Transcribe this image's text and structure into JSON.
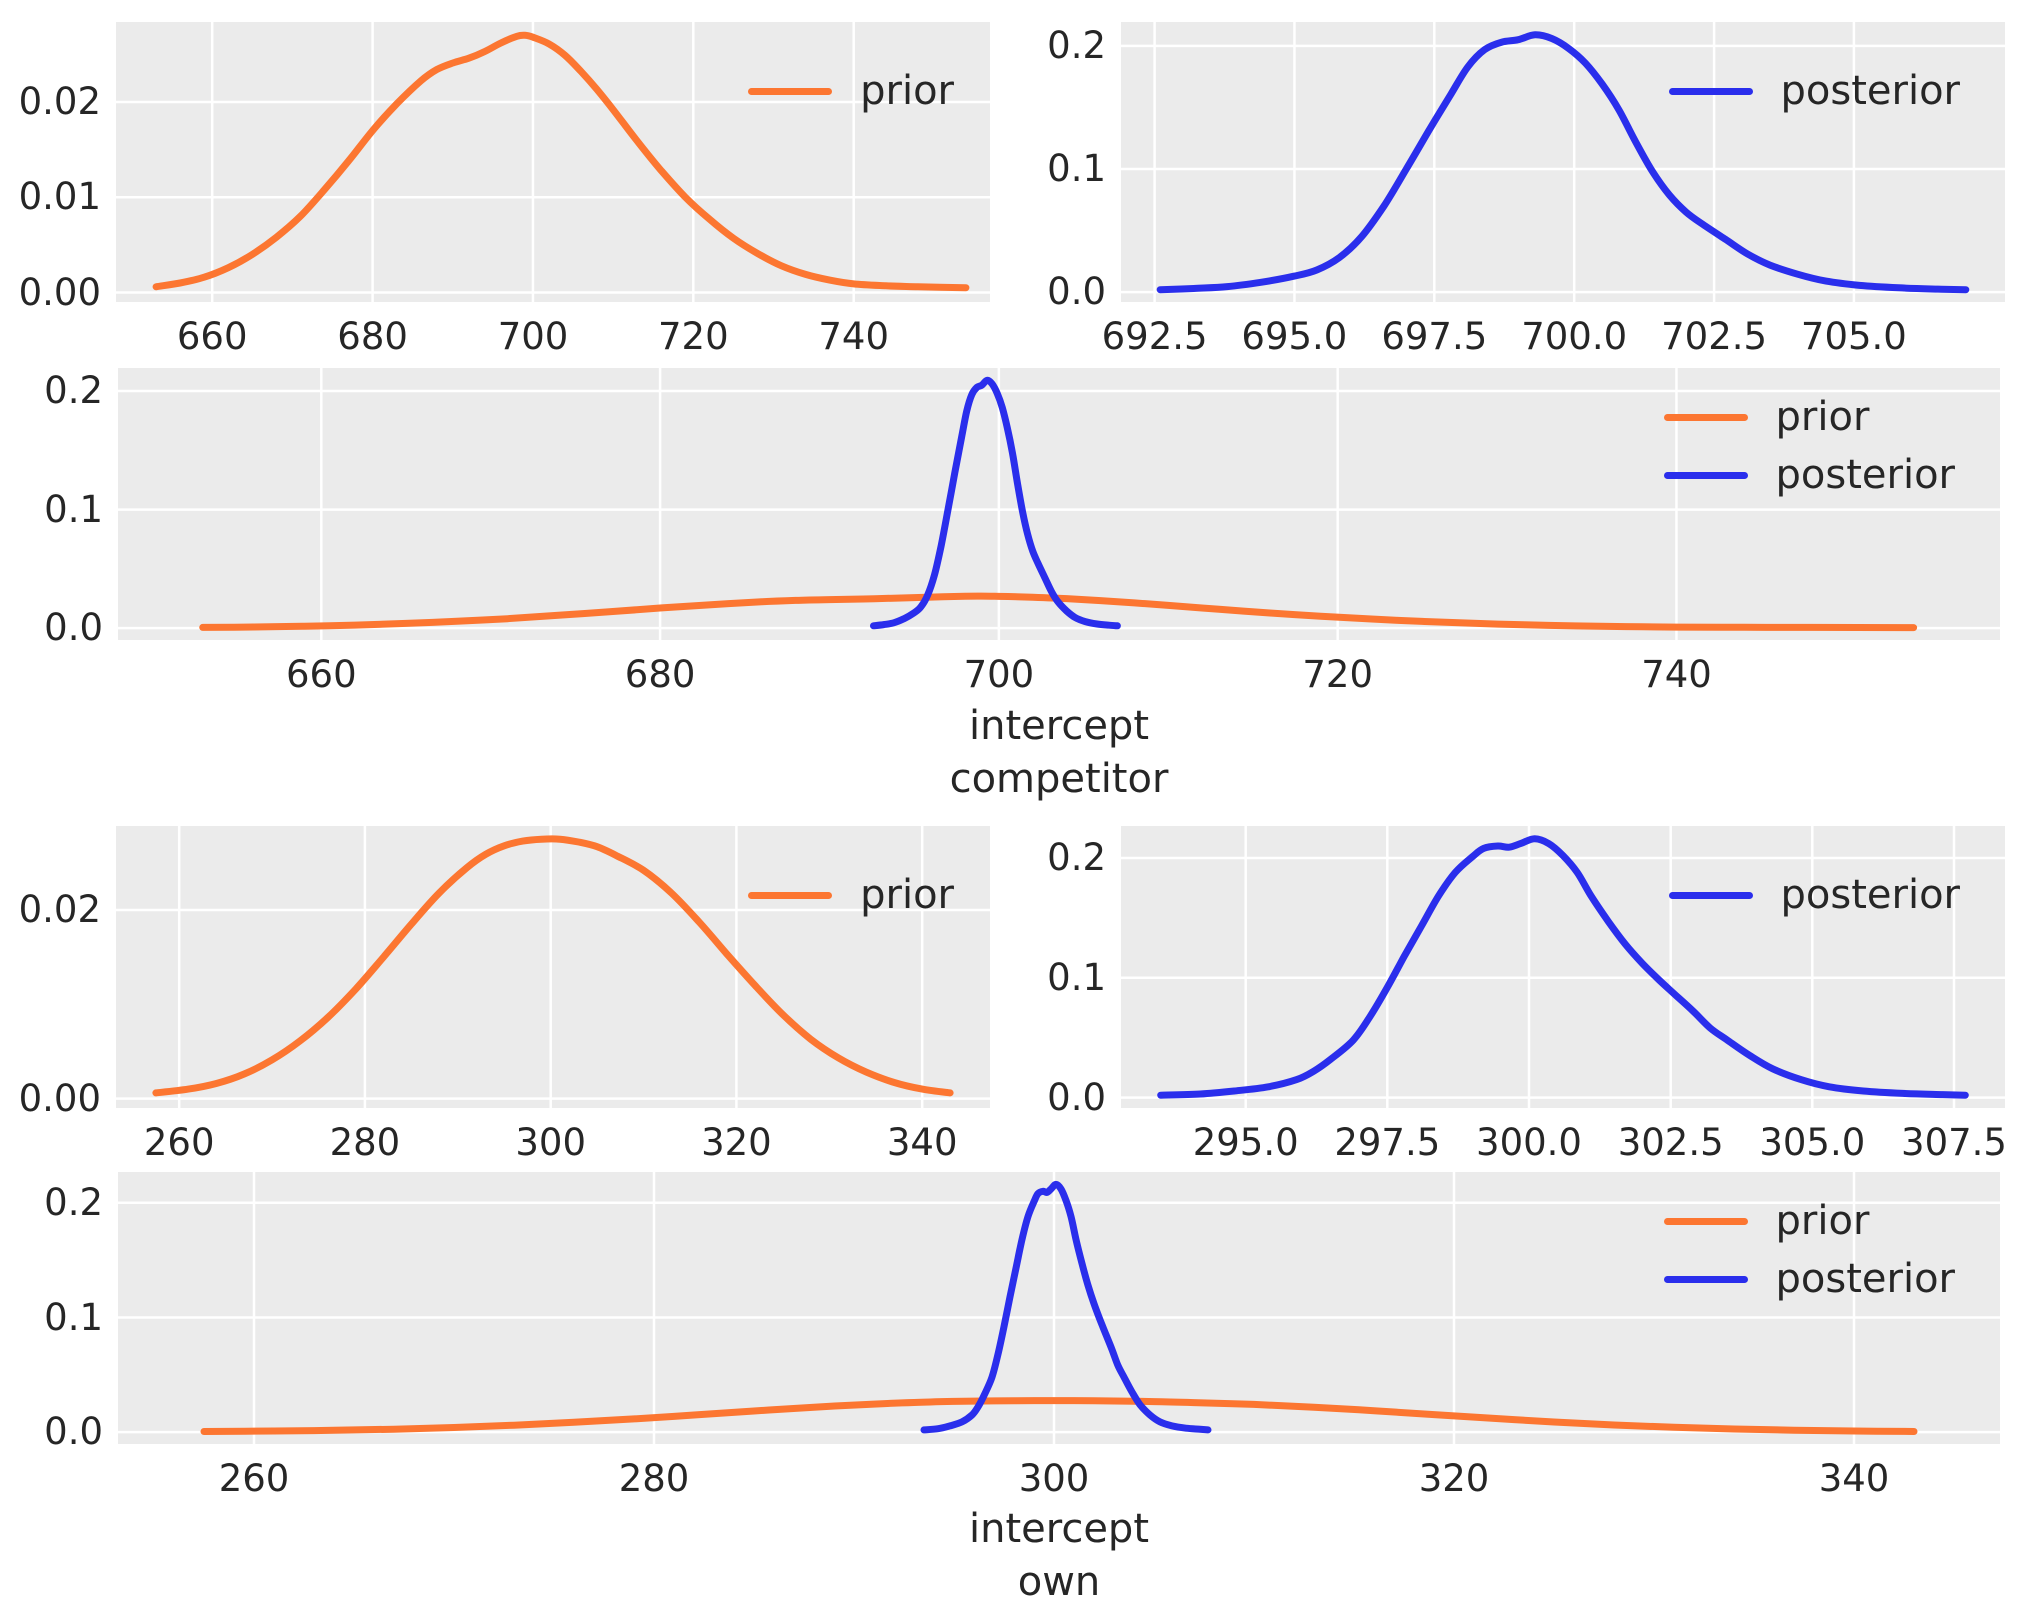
{
  "figure": {
    "kind": "kde-density-figure",
    "description": "Prior and posterior kernel density estimates for the intercept parameters of competitor and own"
  },
  "style": {
    "prior_color": "#fc7631",
    "posterior_color": "#2a2eec",
    "axes_background": "#ebebeb",
    "grid_color": "#ffffff",
    "text_color": "#262626",
    "figure_background": "#ffffff"
  },
  "chart_data": {
    "type": "line",
    "subtype": "kde-density",
    "title": "",
    "legend_position": "upper right",
    "grid": true,
    "curves": {
      "prior_competitor": [
        [
          653,
          0.0006
        ],
        [
          656,
          0.001
        ],
        [
          659,
          0.0016
        ],
        [
          662,
          0.0026
        ],
        [
          665,
          0.004
        ],
        [
          668,
          0.0058
        ],
        [
          671,
          0.008
        ],
        [
          674,
          0.0108
        ],
        [
          677,
          0.0138
        ],
        [
          680,
          0.017
        ],
        [
          683,
          0.0198
        ],
        [
          686,
          0.0222
        ],
        [
          688,
          0.0234
        ],
        [
          690,
          0.0241
        ],
        [
          692,
          0.0246
        ],
        [
          694,
          0.0253
        ],
        [
          696,
          0.0262
        ],
        [
          698,
          0.0269
        ],
        [
          699,
          0.027
        ],
        [
          700,
          0.0268
        ],
        [
          702,
          0.0261
        ],
        [
          704,
          0.0249
        ],
        [
          706,
          0.0232
        ],
        [
          708,
          0.0213
        ],
        [
          710,
          0.0192
        ],
        [
          713,
          0.0159
        ],
        [
          716,
          0.0128
        ],
        [
          719,
          0.01
        ],
        [
          722,
          0.0077
        ],
        [
          725,
          0.0057
        ],
        [
          728,
          0.0041
        ],
        [
          731,
          0.0028
        ],
        [
          734,
          0.0019
        ],
        [
          737,
          0.0013
        ],
        [
          740,
          0.0009
        ],
        [
          744,
          0.0007
        ],
        [
          748,
          0.0006
        ],
        [
          754,
          0.0005
        ]
      ],
      "posterior_competitor": [
        [
          692.6,
          0.002
        ],
        [
          693.2,
          0.003
        ],
        [
          693.8,
          0.0045
        ],
        [
          694.4,
          0.008
        ],
        [
          695,
          0.013
        ],
        [
          695.4,
          0.018
        ],
        [
          695.8,
          0.028
        ],
        [
          696.2,
          0.045
        ],
        [
          696.6,
          0.07
        ],
        [
          697,
          0.1
        ],
        [
          697.4,
          0.131
        ],
        [
          697.8,
          0.161
        ],
        [
          698.1,
          0.183
        ],
        [
          698.4,
          0.197
        ],
        [
          698.7,
          0.203
        ],
        [
          699,
          0.205
        ],
        [
          699.3,
          0.209
        ],
        [
          699.6,
          0.206
        ],
        [
          699.9,
          0.198
        ],
        [
          700.2,
          0.186
        ],
        [
          700.5,
          0.169
        ],
        [
          700.8,
          0.148
        ],
        [
          701.1,
          0.122
        ],
        [
          701.4,
          0.098
        ],
        [
          701.7,
          0.079
        ],
        [
          702,
          0.065
        ],
        [
          702.3,
          0.055
        ],
        [
          702.7,
          0.043
        ],
        [
          703.1,
          0.031
        ],
        [
          703.5,
          0.022
        ],
        [
          704,
          0.0145
        ],
        [
          704.5,
          0.009
        ],
        [
          705.1,
          0.0055
        ],
        [
          705.8,
          0.0035
        ],
        [
          706.5,
          0.0025
        ],
        [
          707,
          0.002
        ]
      ],
      "prior_own": [
        [
          257.5,
          0.0006
        ],
        [
          261,
          0.001
        ],
        [
          264,
          0.0016
        ],
        [
          267,
          0.0026
        ],
        [
          270,
          0.0041
        ],
        [
          273,
          0.0061
        ],
        [
          276,
          0.0086
        ],
        [
          279,
          0.0116
        ],
        [
          282,
          0.015
        ],
        [
          285,
          0.0185
        ],
        [
          288,
          0.0218
        ],
        [
          291,
          0.0245
        ],
        [
          293,
          0.0259
        ],
        [
          295,
          0.0268
        ],
        [
          297,
          0.0273
        ],
        [
          299,
          0.0275
        ],
        [
          301,
          0.0275
        ],
        [
          303,
          0.0272
        ],
        [
          305,
          0.0267
        ],
        [
          307,
          0.0258
        ],
        [
          310,
          0.0242
        ],
        [
          313,
          0.0218
        ],
        [
          316,
          0.0187
        ],
        [
          319,
          0.0153
        ],
        [
          322,
          0.012
        ],
        [
          325,
          0.0089
        ],
        [
          328,
          0.0063
        ],
        [
          331,
          0.0043
        ],
        [
          334,
          0.0028
        ],
        [
          337,
          0.0017
        ],
        [
          340,
          0.001
        ],
        [
          343,
          0.0006
        ]
      ],
      "posterior_own": [
        [
          293.5,
          0.002
        ],
        [
          294.2,
          0.003
        ],
        [
          294.8,
          0.0055
        ],
        [
          295.4,
          0.009
        ],
        [
          295.9,
          0.015
        ],
        [
          296.2,
          0.022
        ],
        [
          296.5,
          0.032
        ],
        [
          296.9,
          0.048
        ],
        [
          297.2,
          0.068
        ],
        [
          297.5,
          0.092
        ],
        [
          297.8,
          0.118
        ],
        [
          298.1,
          0.143
        ],
        [
          298.4,
          0.168
        ],
        [
          298.7,
          0.188
        ],
        [
          299,
          0.201
        ],
        [
          299.2,
          0.208
        ],
        [
          299.45,
          0.21
        ],
        [
          299.65,
          0.209
        ],
        [
          299.85,
          0.212
        ],
        [
          300.1,
          0.216
        ],
        [
          300.35,
          0.212
        ],
        [
          300.6,
          0.202
        ],
        [
          300.85,
          0.188
        ],
        [
          301.1,
          0.168
        ],
        [
          301.4,
          0.147
        ],
        [
          301.7,
          0.128
        ],
        [
          302,
          0.112
        ],
        [
          302.3,
          0.098
        ],
        [
          302.6,
          0.085
        ],
        [
          302.9,
          0.072
        ],
        [
          303.2,
          0.058
        ],
        [
          303.5,
          0.048
        ],
        [
          303.9,
          0.035
        ],
        [
          304.3,
          0.024
        ],
        [
          304.8,
          0.015
        ],
        [
          305.3,
          0.009
        ],
        [
          305.9,
          0.0055
        ],
        [
          306.6,
          0.0035
        ],
        [
          307.3,
          0.0025
        ],
        [
          307.7,
          0.002
        ]
      ]
    },
    "plots": [
      {
        "name": "prior-competitor",
        "xlim": [
          648,
          757
        ],
        "ylim": [
          -0.001,
          0.0284
        ],
        "xtick_labels": [
          "660",
          "680",
          "700",
          "720",
          "740"
        ],
        "xtick_values": [
          660,
          680,
          700,
          720,
          740
        ],
        "ytick_labels": [
          "0.00",
          "0.01",
          "0.02"
        ],
        "ytick_values": [
          0,
          0.01,
          0.02
        ],
        "series": [
          {
            "label": "prior",
            "curve": "prior_competitor",
            "color_key": "prior_color"
          }
        ],
        "legend": [
          {
            "label": "prior",
            "color_key": "prior_color"
          }
        ]
      },
      {
        "name": "posterior-competitor",
        "xlim": [
          691.9,
          707.7
        ],
        "ylim": [
          -0.008,
          0.2194
        ],
        "xtick_labels": [
          "692.5",
          "695.0",
          "697.5",
          "700.0",
          "702.5",
          "705.0"
        ],
        "xtick_values": [
          692.5,
          695,
          697.5,
          700,
          702.5,
          705
        ],
        "ytick_labels": [
          "0.0",
          "0.1",
          "0.2"
        ],
        "ytick_values": [
          0,
          0.1,
          0.2
        ],
        "series": [
          {
            "label": "posterior",
            "curve": "posterior_competitor",
            "color_key": "posterior_color"
          }
        ],
        "legend": [
          {
            "label": "posterior",
            "color_key": "posterior_color"
          }
        ]
      },
      {
        "name": "combined-competitor",
        "xlabel_line1": "intercept",
        "xlabel_line2": "competitor",
        "xlim": [
          648,
          759.1
        ],
        "ylim": [
          -0.01,
          0.2194
        ],
        "xtick_labels": [
          "660",
          "680",
          "700",
          "720",
          "740"
        ],
        "xtick_values": [
          660,
          680,
          700,
          720,
          740
        ],
        "ytick_labels": [
          "0.0",
          "0.1",
          "0.2"
        ],
        "ytick_values": [
          0,
          0.1,
          0.2
        ],
        "series": [
          {
            "label": "prior",
            "curve": "prior_competitor",
            "color_key": "prior_color"
          },
          {
            "label": "posterior",
            "curve": "posterior_competitor",
            "color_key": "posterior_color"
          }
        ],
        "legend": [
          {
            "label": "prior",
            "color_key": "prior_color"
          },
          {
            "label": "posterior",
            "color_key": "posterior_color"
          }
        ]
      },
      {
        "name": "prior-own",
        "xlim": [
          253.2,
          347.3
        ],
        "ylim": [
          -0.001,
          0.0289
        ],
        "xtick_labels": [
          "260",
          "280",
          "300",
          "320",
          "340"
        ],
        "xtick_values": [
          260,
          280,
          300,
          320,
          340
        ],
        "ytick_labels": [
          "0.00",
          "0.02"
        ],
        "ytick_values": [
          0,
          0.02
        ],
        "series": [
          {
            "label": "prior",
            "curve": "prior_own",
            "color_key": "prior_color"
          }
        ],
        "legend": [
          {
            "label": "prior",
            "color_key": "prior_color"
          }
        ]
      },
      {
        "name": "posterior-own",
        "xlim": [
          292.8,
          308.4
        ],
        "ylim": [
          -0.0087,
          0.2267
        ],
        "xtick_labels": [
          "295.0",
          "297.5",
          "300.0",
          "302.5",
          "305.0",
          "307.5"
        ],
        "xtick_values": [
          295,
          297.5,
          300,
          302.5,
          305,
          307.5
        ],
        "ytick_labels": [
          "0.0",
          "0.1",
          "0.2"
        ],
        "ytick_values": [
          0,
          0.1,
          0.2
        ],
        "series": [
          {
            "label": "posterior",
            "curve": "posterior_own",
            "color_key": "posterior_color"
          }
        ],
        "legend": [
          {
            "label": "posterior",
            "color_key": "posterior_color"
          }
        ]
      },
      {
        "name": "combined-own",
        "xlabel_line1": "intercept",
        "xlabel_line2": "own",
        "xlim": [
          253.2,
          347.3
        ],
        "ylim": [
          -0.0103,
          0.2268
        ],
        "xtick_labels": [
          "260",
          "280",
          "300",
          "320",
          "340"
        ],
        "xtick_values": [
          260,
          280,
          300,
          320,
          340
        ],
        "ytick_labels": [
          "0.0",
          "0.1",
          "0.2"
        ],
        "ytick_values": [
          0,
          0.1,
          0.2
        ],
        "series": [
          {
            "label": "prior",
            "curve": "prior_own",
            "color_key": "prior_color"
          },
          {
            "label": "posterior",
            "curve": "posterior_own",
            "color_key": "posterior_color"
          }
        ],
        "legend": [
          {
            "label": "prior",
            "color_key": "prior_color"
          },
          {
            "label": "posterior",
            "color_key": "posterior_color"
          }
        ]
      }
    ]
  }
}
